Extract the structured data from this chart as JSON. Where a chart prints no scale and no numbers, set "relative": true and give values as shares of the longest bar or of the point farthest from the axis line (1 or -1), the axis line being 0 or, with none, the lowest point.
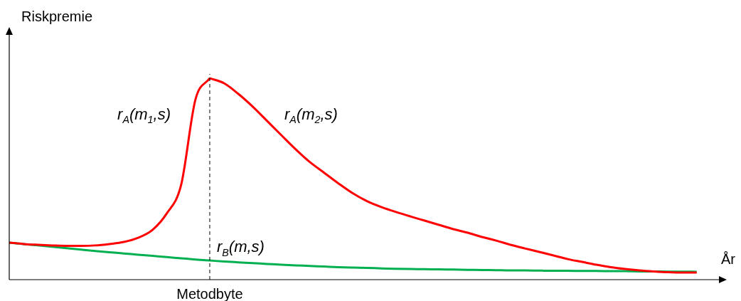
{
  "chart_data": {
    "type": "line",
    "relative": true,
    "xlabel": "År",
    "ylabel": "Riskpremie",
    "legend": false,
    "categories": [
      null,
      null,
      null,
      null,
      null,
      null,
      null,
      null,
      null,
      null,
      null,
      null,
      null,
      null,
      null,
      null,
      null,
      null,
      null,
      null,
      null,
      null,
      null,
      null,
      null,
      null,
      null,
      null,
      null,
      null,
      null,
      null,
      null,
      null,
      null,
      null,
      null,
      null,
      null,
      null,
      null,
      null,
      null,
      null,
      null,
      null,
      null,
      null,
      null
    ],
    "series": [
      {
        "name": "r$_{A}$(m$_{1}$,s)",
        "color": "#ff0000",
        "values": [
          0.184,
          0.177,
          0.173,
          0.17,
          0.168,
          0.168,
          0.17,
          0.177,
          0.187,
          0.208,
          0.247,
          0.329,
          0.47,
          0.894,
          1.0,
          null,
          null,
          null,
          null,
          null,
          null,
          null,
          null,
          null,
          null,
          null,
          null,
          null,
          null,
          null,
          null,
          null,
          null,
          null,
          null,
          null,
          null,
          null,
          null,
          null,
          null,
          null,
          null,
          null,
          null,
          null,
          null,
          null,
          null
        ]
      },
      {
        "name": "r$_{A}$(m$_{2}$,s)",
        "color": "#ff0000",
        "values": [
          null,
          null,
          null,
          null,
          null,
          null,
          null,
          null,
          null,
          null,
          null,
          null,
          null,
          null,
          1.0,
          0.975,
          0.922,
          0.859,
          0.788,
          0.717,
          0.647,
          0.583,
          0.53,
          0.477,
          0.428,
          0.389,
          0.36,
          0.336,
          0.314,
          0.293,
          0.272,
          0.251,
          0.233,
          0.212,
          0.194,
          0.173,
          0.155,
          0.138,
          0.12,
          0.102,
          0.088,
          0.074,
          0.062,
          0.053,
          0.046,
          0.041,
          0.037,
          0.035,
          0.035
        ]
      },
      {
        "name": "r$_{B}$(m,s)",
        "color": "#00b050",
        "values": [
          0.184,
          0.177,
          0.17,
          0.163,
          0.156,
          0.149,
          0.142,
          0.136,
          0.13,
          0.124,
          0.118,
          0.112,
          0.106,
          0.1,
          0.095,
          0.09,
          0.086,
          0.082,
          0.078,
          0.074,
          0.071,
          0.068,
          0.065,
          0.062,
          0.06,
          0.058,
          0.056,
          0.054,
          0.053,
          0.052,
          0.051,
          0.05,
          0.049,
          0.048,
          0.047,
          0.046,
          0.046,
          0.045,
          0.044,
          0.044,
          0.043,
          0.043,
          0.042,
          0.042,
          0.041,
          0.041,
          0.04,
          0.04,
          0.039
        ]
      }
    ],
    "annotations": [
      "Metodbyte"
    ]
  }
}
